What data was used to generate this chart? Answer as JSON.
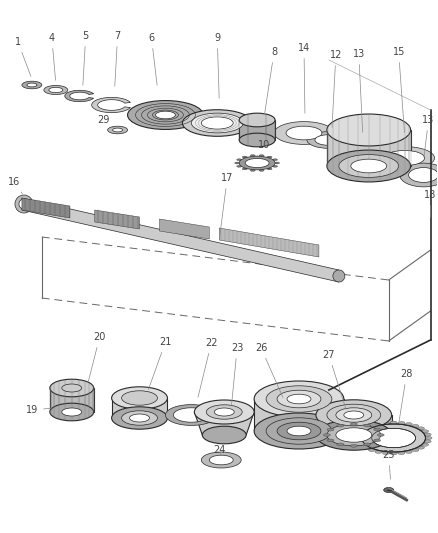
{
  "bg_color": "#ffffff",
  "lc": "#2a2a2a",
  "gray1": "#999999",
  "gray2": "#bbbbbb",
  "gray3": "#dddddd",
  "gray4": "#444444",
  "gray5": "#cccccc",
  "label_fs": 7,
  "label_color": "#444444"
}
